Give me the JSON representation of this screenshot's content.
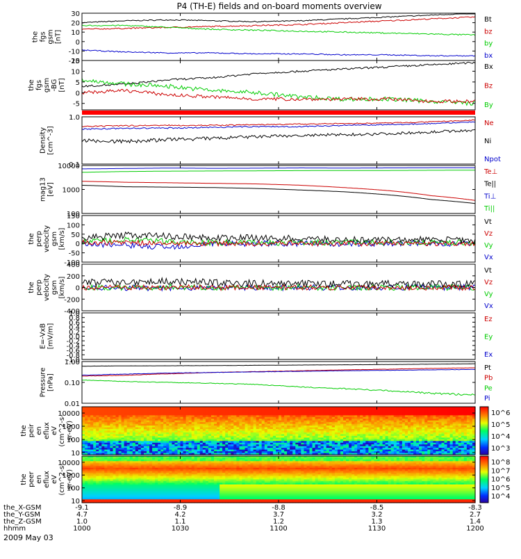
{
  "chart_data": {
    "type": "line",
    "title": "P4 (TH-E) fields and on-board moments overview",
    "date": "2009 May 03",
    "x_labels": [
      "1000",
      "1030",
      "1100",
      "1130",
      "1200"
    ],
    "ephemeris": {
      "names": [
        "the_X-GSM",
        "the_Y-GSM",
        "the_Z-GSM",
        "hhmm"
      ],
      "rows": [
        [
          "-9.1",
          "-8.9",
          "-8.8",
          "-8.5",
          "-8.3"
        ],
        [
          "4.7",
          "4.2",
          "3.7",
          "3.2",
          "2.7"
        ],
        [
          "1.0",
          "1.1",
          "1.2",
          "1.3",
          "1.4"
        ],
        [
          "1000",
          "1030",
          "1100",
          "1130",
          "1200"
        ]
      ]
    },
    "panels": [
      {
        "ylabel": [
          "the",
          "fgs",
          "gsm",
          "[nT]"
        ],
        "yscale": "linear",
        "ylim": [
          -20,
          30
        ],
        "ticks": [
          "30",
          "20",
          "10",
          "0",
          "-10",
          "-20"
        ],
        "tick_values": [
          30,
          20,
          10,
          0,
          -10,
          -20
        ],
        "legend": [
          {
            "t": "Bt",
            "c": "#000000"
          },
          {
            "t": "bz",
            "c": "#cc0000"
          },
          {
            "t": "by",
            "c": "#00cc00"
          },
          {
            "t": "bx",
            "c": "#0000cc"
          }
        ],
        "series": [
          {
            "name": "Bt",
            "color": "#000000",
            "noise": 0.5,
            "values": [
              20,
              22,
              23,
              22,
              21,
              22,
              24,
              26,
              28,
              30
            ]
          },
          {
            "name": "bz",
            "color": "#cc0000",
            "noise": 0.6,
            "values": [
              13,
              14,
              15,
              16,
              17,
              18,
              20,
              22,
              24,
              26
            ]
          },
          {
            "name": "by",
            "color": "#00cc00",
            "noise": 0.6,
            "values": [
              17,
              17,
              15,
              13,
              12,
              11,
              10,
              9,
              8,
              7
            ]
          },
          {
            "name": "bx",
            "color": "#0000cc",
            "noise": 0.5,
            "values": [
              -9,
              -11,
              -12,
              -12,
              -13,
              -13,
              -14,
              -14,
              -15,
              -15
            ]
          }
        ]
      },
      {
        "ylabel": [
          "the",
          "fgs",
          "gsm",
          "-BG",
          "[nT]"
        ],
        "yscale": "linear",
        "ylim": [
          -8,
          15
        ],
        "ticks": [
          "15",
          "10",
          "5",
          "0",
          "-5"
        ],
        "tick_values": [
          15,
          10,
          5,
          0,
          -5
        ],
        "legend": [
          {
            "t": "Bx",
            "c": "#000000"
          },
          {
            "t": "Bz",
            "c": "#cc0000"
          },
          {
            "t": "By",
            "c": "#00cc00"
          }
        ],
        "series": [
          {
            "name": "Bx",
            "color": "#000000",
            "noise": 0.4,
            "values": [
              3,
              4,
              6,
              7,
              9,
              10,
              11,
              12,
              13,
              14
            ]
          },
          {
            "name": "By",
            "color": "#00cc00",
            "noise": 0.9,
            "values": [
              6,
              4,
              3,
              1,
              0,
              -2,
              -3,
              -3,
              -4,
              -5
            ]
          },
          {
            "name": "Bz",
            "color": "#cc0000",
            "noise": 0.7,
            "values": [
              0,
              1,
              -1,
              -2,
              -3,
              -3,
              -3,
              -3,
              -4,
              -4
            ]
          }
        ]
      },
      {
        "ylabel": [
          "Density",
          "[cm^-3]"
        ],
        "yscale": "log",
        "ylim": [
          0.1,
          1.0
        ],
        "ticks": [
          "1.0",
          "0.1"
        ],
        "tick_values": [
          1.0,
          0.1
        ],
        "legend": [
          {
            "t": "Ne",
            "c": "#cc0000"
          },
          {
            "t": "Ni",
            "c": "#000000"
          },
          {
            "t": "Npot",
            "c": "#0000cc"
          }
        ],
        "series": [
          {
            "name": "Ne",
            "color": "#cc0000",
            "noise": 0.03,
            "values": [
              0.62,
              0.65,
              0.66,
              0.66,
              0.68,
              0.7,
              0.72,
              0.74,
              0.78,
              0.85
            ]
          },
          {
            "name": "Npot",
            "color": "#0000cc",
            "noise": 0.03,
            "values": [
              0.55,
              0.57,
              0.58,
              0.6,
              0.62,
              0.62,
              0.66,
              0.68,
              0.72,
              0.78
            ]
          },
          {
            "name": "Ni",
            "color": "#000000",
            "noise": 0.05,
            "values": [
              0.32,
              0.3,
              0.33,
              0.35,
              0.38,
              0.4,
              0.42,
              0.44,
              0.48,
              0.52
            ]
          }
        ]
      },
      {
        "ylabel": [
          "mag13",
          "[eV]"
        ],
        "yscale": "log",
        "ylim": [
          100,
          10000
        ],
        "ticks": [
          "10000",
          "1000",
          "100"
        ],
        "tick_values": [
          10000,
          1000,
          100
        ],
        "legend": [
          {
            "t": "Te⊥",
            "c": "#cc0000"
          },
          {
            "t": "Te||",
            "c": "#000000"
          },
          {
            "t": "Ti⊥",
            "c": "#0000cc"
          },
          {
            "t": "Ti||",
            "c": "#00cc00"
          }
        ],
        "series": [
          {
            "name": "Ti⊥",
            "color": "#0000cc",
            "noise": 0.03,
            "values": [
              7200,
              7500,
              7800,
              7600,
              7700,
              7900,
              7800,
              7900,
              8000,
              8100
            ]
          },
          {
            "name": "Ti||",
            "color": "#00cc00",
            "noise": 0.03,
            "values": [
              5200,
              5600,
              5800,
              5900,
              6000,
              6100,
              6200,
              6200,
              6300,
              6400
            ]
          },
          {
            "name": "Te⊥",
            "color": "#cc0000",
            "noise": 0.03,
            "values": [
              2200,
              2000,
              1900,
              1800,
              1700,
              1500,
              1200,
              900,
              550,
              350
            ]
          },
          {
            "name": "Te||",
            "color": "#000000",
            "noise": 0.03,
            "values": [
              1500,
              1300,
              1250,
              1200,
              1100,
              950,
              800,
              600,
              380,
              260
            ]
          }
        ]
      },
      {
        "ylabel": [
          "the",
          "perp",
          "velocity",
          "gsm",
          "[km/s]"
        ],
        "yscale": "linear",
        "ylim": [
          -100,
          150
        ],
        "ticks": [
          "150",
          "100",
          "50",
          "0",
          "-50",
          "-100"
        ],
        "tick_values": [
          150,
          100,
          50,
          0,
          -50,
          -100
        ],
        "legend": [
          {
            "t": "Vt",
            "c": "#000000"
          },
          {
            "t": "Vz",
            "c": "#cc0000"
          },
          {
            "t": "Vy",
            "c": "#00cc00"
          },
          {
            "t": "Vx",
            "c": "#0000cc"
          }
        ],
        "series": [
          {
            "name": "Vx",
            "color": "#0000cc",
            "noise": 14,
            "values": [
              0,
              -10,
              -20,
              0,
              0,
              0,
              0,
              0,
              0,
              0
            ]
          },
          {
            "name": "Vy",
            "color": "#00cc00",
            "noise": 14,
            "values": [
              10,
              20,
              10,
              5,
              5,
              5,
              5,
              5,
              5,
              5
            ]
          },
          {
            "name": "Vt",
            "color": "#000000",
            "noise": 16,
            "values": [
              30,
              45,
              40,
              30,
              30,
              25,
              20,
              20,
              20,
              18
            ]
          },
          {
            "name": "Vz",
            "color": "#cc0000",
            "noise": 12,
            "values": [
              5,
              5,
              0,
              0,
              0,
              0,
              0,
              0,
              0,
              0
            ]
          }
        ]
      },
      {
        "ylabel": [
          "the",
          "perp",
          "velocity",
          "gsm",
          "[km/s]"
        ],
        "yscale": "linear",
        "ylim": [
          -400,
          400
        ],
        "ticks": [
          "400",
          "200",
          "0",
          "-200",
          "-400"
        ],
        "tick_values": [
          400,
          200,
          0,
          -200,
          -400
        ],
        "legend": [
          {
            "t": "Vt",
            "c": "#000000"
          },
          {
            "t": "Vz",
            "c": "#cc0000"
          },
          {
            "t": "Vy",
            "c": "#00cc00"
          },
          {
            "t": "Vx",
            "c": "#0000cc"
          }
        ],
        "series": [
          {
            "name": "Vx",
            "color": "#0000cc",
            "noise": 45,
            "values": [
              0,
              0,
              -20,
              0,
              0,
              0,
              0,
              0,
              0,
              0
            ]
          },
          {
            "name": "Vy",
            "color": "#00cc00",
            "noise": 45,
            "values": [
              0,
              0,
              10,
              0,
              0,
              0,
              0,
              0,
              0,
              0
            ]
          },
          {
            "name": "Vt",
            "color": "#000000",
            "noise": 55,
            "values": [
              80,
              100,
              110,
              80,
              70,
              70,
              60,
              60,
              60,
              60
            ]
          },
          {
            "name": "Vz",
            "color": "#cc0000",
            "noise": 40,
            "values": [
              0,
              0,
              0,
              0,
              0,
              0,
              0,
              0,
              0,
              0
            ]
          }
        ]
      },
      {
        "ylabel": [
          "E=-VxB",
          "[mV/m]"
        ],
        "yscale": "linear",
        "ylim": [
          -1.0,
          1.0
        ],
        "ticks": [
          "1.0",
          "0.8",
          "0.6",
          "0.4",
          "0.2",
          "0.0",
          "-0.2",
          "-0.4",
          "-0.6",
          "-0.8",
          "-1.0"
        ],
        "tick_values": [
          1.0,
          0.8,
          0.6,
          0.4,
          0.2,
          0.0,
          -0.2,
          -0.4,
          -0.6,
          -0.8,
          -1.0
        ],
        "legend": [
          {
            "t": "Ez",
            "c": "#cc0000"
          },
          {
            "t": "Ey",
            "c": "#00cc00"
          },
          {
            "t": "Ex",
            "c": "#0000cc"
          }
        ],
        "series": []
      },
      {
        "ylabel": [
          "Pressure",
          "[nPa]"
        ],
        "yscale": "log",
        "ylim": [
          0.01,
          1.0
        ],
        "ticks": [
          "1.00",
          "0.10",
          "0.01"
        ],
        "tick_values": [
          1.0,
          0.1,
          0.01
        ],
        "legend": [
          {
            "t": "Pt",
            "c": "#000000"
          },
          {
            "t": "Pb",
            "c": "#cc0000"
          },
          {
            "t": "Pe",
            "c": "#00cc00"
          },
          {
            "t": "Pi",
            "c": "#0000cc"
          }
        ],
        "series": [
          {
            "name": "Pt",
            "color": "#000000",
            "noise": 0.01,
            "values": [
              0.6,
              0.62,
              0.63,
              0.64,
              0.66,
              0.68,
              0.7,
              0.72,
              0.75,
              0.78
            ]
          },
          {
            "name": "Pb",
            "color": "#cc0000",
            "noise": 0.01,
            "values": [
              0.2,
              0.22,
              0.26,
              0.3,
              0.33,
              0.36,
              0.4,
              0.43,
              0.47,
              0.5
            ]
          },
          {
            "name": "Pi",
            "color": "#0000cc",
            "noise": 0.01,
            "values": [
              0.22,
              0.25,
              0.28,
              0.3,
              0.32,
              0.34,
              0.36,
              0.38,
              0.4,
              0.42
            ]
          },
          {
            "name": "Pe",
            "color": "#00cc00",
            "noise": 0.005,
            "values": [
              0.13,
              0.11,
              0.1,
              0.09,
              0.08,
              0.06,
              0.05,
              0.04,
              0.03,
              0.025
            ]
          }
        ]
      }
    ],
    "spectrograms": [
      {
        "ylabel": [
          "the",
          "peir",
          "en",
          "eflux",
          "eV",
          "(cm^2-s-",
          "sr-eV)"
        ],
        "yscale": "log",
        "ylim": [
          7,
          30000
        ],
        "ticks": [
          "10000",
          "1000",
          "100",
          "10"
        ],
        "tick_values": [
          10000,
          1000,
          100,
          10
        ],
        "colorbar_ticks": [
          "10^6",
          "10^5",
          "10^4",
          "10^3"
        ]
      },
      {
        "ylabel": [
          "the",
          "peer",
          "en",
          "eflux",
          "eV",
          "(cm^2-s-",
          "sr-eV)"
        ],
        "yscale": "log",
        "ylim": [
          7,
          30000
        ],
        "ticks": [
          "10000",
          "1000",
          "100",
          "10"
        ],
        "tick_values": [
          10000,
          1000,
          100,
          10
        ],
        "colorbar_ticks": [
          "10^8",
          "10^7",
          "10^6",
          "10^5",
          "10^4"
        ]
      }
    ]
  }
}
